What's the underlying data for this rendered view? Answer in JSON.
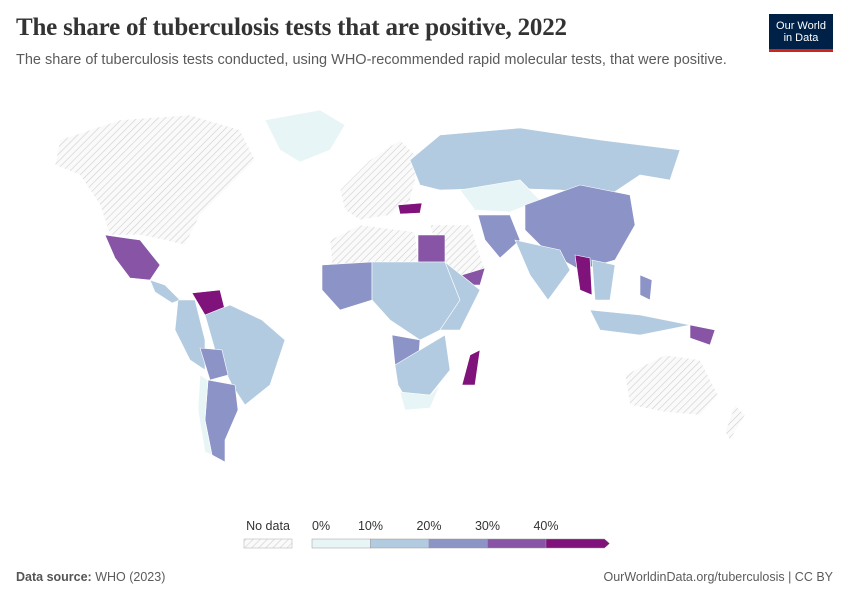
{
  "header": {
    "title": "The share of tuberculosis tests that are positive, 2022",
    "subtitle": "The share of tuberculosis tests conducted, using WHO-recommended rapid molecular tests, that were positive.",
    "logo": "Our World in Data"
  },
  "legend": {
    "no_data": "No data",
    "ticks": [
      {
        "value": 0,
        "label": "0%"
      },
      {
        "value": 10,
        "label": "10%"
      },
      {
        "value": 20,
        "label": "20%"
      },
      {
        "value": 30,
        "label": "30%"
      },
      {
        "value": 40,
        "label": "40%"
      }
    ],
    "colors": [
      "#e8f5f6",
      "#b2cbe0",
      "#8c93c7",
      "#8754a6",
      "#80127b"
    ]
  },
  "footer": {
    "source_label": "Data source:",
    "source": "WHO (2023)",
    "url": "OurWorldinData.org/tuberculosis | CC BY"
  }
}
